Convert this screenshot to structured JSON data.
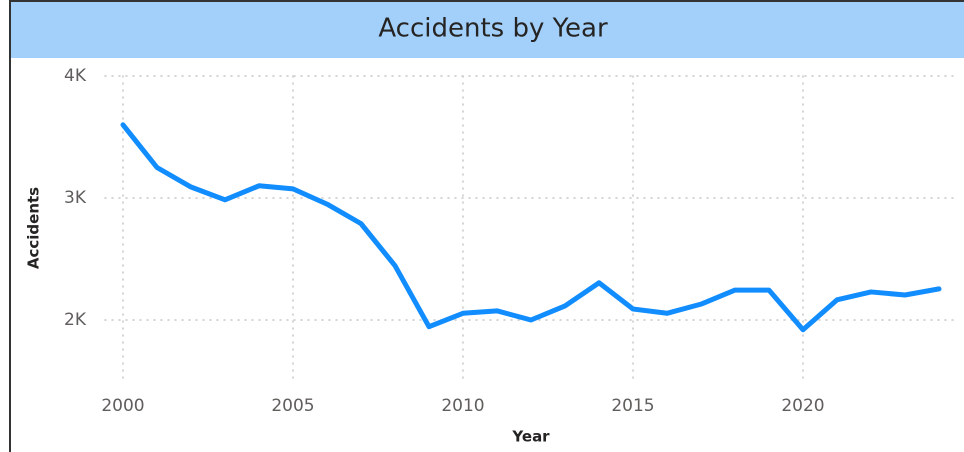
{
  "chart_data": {
    "type": "line",
    "title": "Accidents by Year",
    "x_label": "Year",
    "y_label": "Accidents",
    "x": [
      2000,
      2001,
      2002,
      2003,
      2004,
      2005,
      2006,
      2007,
      2008,
      2009,
      2010,
      2011,
      2012,
      2013,
      2014,
      2015,
      2016,
      2017,
      2018,
      2019,
      2020,
      2021,
      2022,
      2023,
      2024
    ],
    "series": [
      {
        "name": "Accidents",
        "color": "#118dff",
        "values": [
          3600,
          3250,
          3090,
          2985,
          3100,
          3075,
          2950,
          2790,
          2445,
          1945,
          2055,
          2075,
          2000,
          2115,
          2305,
          2090,
          2055,
          2130,
          2245,
          2245,
          1920,
          2165,
          2230,
          2205,
          2255
        ]
      }
    ],
    "xlim": [
      2000,
      2024
    ],
    "xticks": [
      2000,
      2005,
      2010,
      2015,
      2020
    ],
    "ylim": [
      1500,
      4000
    ],
    "yticks": [
      {
        "value": 2000,
        "label": "2K"
      },
      {
        "value": 3000,
        "label": "3K"
      },
      {
        "value": 4000,
        "label": "4K"
      }
    ],
    "grid": true
  }
}
